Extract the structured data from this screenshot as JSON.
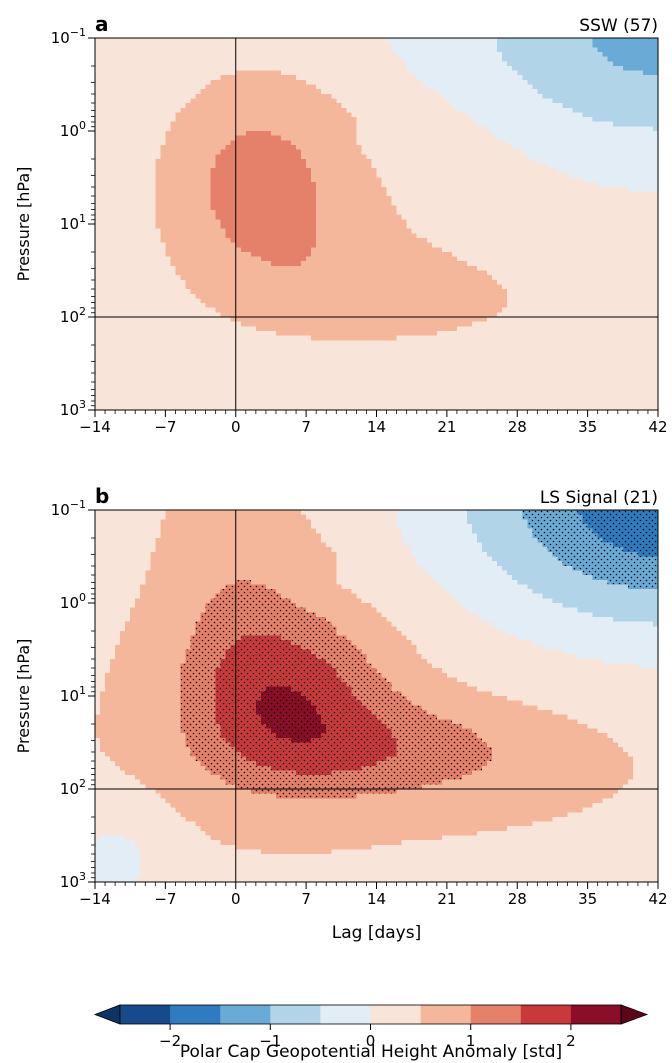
{
  "chart_data": [
    {
      "type": "heatmap",
      "panel_letter": "a",
      "title": "SSW (57)",
      "ylabel": "Pressure [hPa]",
      "xlabel": "",
      "xlim": [
        -14,
        42
      ],
      "xticks": [
        -14,
        -7,
        0,
        7,
        14,
        21,
        28,
        35,
        42
      ],
      "ylim": [
        1000,
        0.1
      ],
      "yscale": "log",
      "yticks": [
        {
          "value": 0.1,
          "base": "10",
          "exp": "−1"
        },
        {
          "value": 1,
          "base": "10",
          "exp": "0"
        },
        {
          "value": 10,
          "base": "10",
          "exp": "1"
        },
        {
          "value": 100,
          "base": "10",
          "exp": "2"
        },
        {
          "value": 1000,
          "base": "10",
          "exp": "3"
        }
      ],
      "reference_lines": {
        "lag": 0,
        "pressure": 100
      },
      "stippling": false,
      "max_anomaly_std": 1.6,
      "max_location": {
        "lag": 4,
        "pressure": 3
      },
      "min_anomaly_std": -1.1,
      "min_location": {
        "lag": 42,
        "pressure": 0.1
      }
    },
    {
      "type": "heatmap",
      "panel_letter": "b",
      "title": "LS Signal (21)",
      "ylabel": "Pressure [hPa]",
      "xlabel": "Lag [days]",
      "xlim": [
        -14,
        42
      ],
      "xticks": [
        -14,
        -7,
        0,
        7,
        14,
        21,
        28,
        35,
        42
      ],
      "ylim": [
        1000,
        0.1
      ],
      "yscale": "log",
      "yticks": [
        {
          "value": 0.1,
          "base": "10",
          "exp": "−1"
        },
        {
          "value": 1,
          "base": "10",
          "exp": "0"
        },
        {
          "value": 10,
          "base": "10",
          "exp": "1"
        },
        {
          "value": 100,
          "base": "10",
          "exp": "2"
        },
        {
          "value": 1000,
          "base": "10",
          "exp": "3"
        }
      ],
      "reference_lines": {
        "lag": 0,
        "pressure": 100
      },
      "stippling": true,
      "max_anomaly_std": 2.3,
      "max_location": {
        "lag": 7,
        "pressure": 20
      },
      "min_anomaly_std": -2.2,
      "min_location": {
        "lag": 42,
        "pressure": 0.1
      }
    }
  ],
  "colorbar": {
    "label": "Polar Cap Geopotential Height Anomaly [std]",
    "levels": [
      -2.5,
      -2,
      -1.5,
      -1,
      -0.5,
      0,
      0.5,
      1,
      1.5,
      2,
      2.5
    ],
    "colors": [
      "#174a8b",
      "#2e7bbf",
      "#6aaad6",
      "#b2d4e8",
      "#e3edf5",
      "#f9e4da",
      "#f5b79b",
      "#e5806a",
      "#c8393b",
      "#8a0e27"
    ],
    "extend_colors": {
      "under": "#0c3465",
      "over": "#5e0419"
    },
    "ticks": [
      {
        "value": -2,
        "label": "−2"
      },
      {
        "value": -1,
        "label": "−1"
      },
      {
        "value": 0,
        "label": "0"
      },
      {
        "value": 1,
        "label": "1"
      },
      {
        "value": 2,
        "label": "2"
      }
    ]
  }
}
